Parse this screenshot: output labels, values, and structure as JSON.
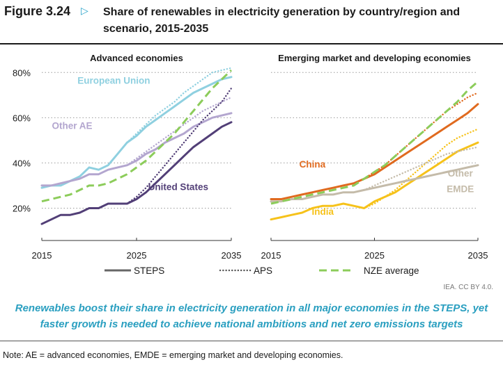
{
  "figure": {
    "label": "Figure 3.24",
    "title": "Share of renewables in electricity generation by country/region and scenario, 2015-2035",
    "credit": "IEA. CC BY 4.0.",
    "caption": "Renewables boost their share in electricity generation in all major economies in the STEPS, yet faster growth is needed to achieve national ambitions and net zero emissions targets",
    "note": "Note: AE = advanced economies, EMDE = emerging market and developing economies."
  },
  "colors": {
    "eu": "#8fd0e0",
    "other_ae": "#b3a6cf",
    "us": "#523f77",
    "china": "#e06a1f",
    "india": "#f6c21a",
    "other_emde": "#c4bba9",
    "nze": "#8ccc5a",
    "legend_line": "#666666",
    "grid": "#9a9a9a",
    "title_accent": "#29a3c9",
    "caption": "#2a9fc0"
  },
  "legend": [
    {
      "label": "STEPS",
      "style": "solid"
    },
    {
      "label": "APS",
      "style": "dotted"
    },
    {
      "label": "NZE average",
      "style": "dashed"
    }
  ],
  "chart_data": [
    {
      "type": "line",
      "title": "Advanced economies",
      "x_ticks": [
        2015,
        2025,
        2035
      ],
      "y_ticks": [
        "20%",
        "40%",
        "60%",
        "80%"
      ],
      "xlim": [
        2015,
        2035
      ],
      "ylim": [
        10,
        85
      ],
      "y_unit": "%",
      "grid": "horizontal dotted",
      "series": [
        {
          "name": "European Union",
          "scenario": "STEPS",
          "color_key": "eu",
          "x": [
            2015,
            2016,
            2017,
            2018,
            2019,
            2020,
            2021,
            2022,
            2023,
            2024,
            2025,
            2026,
            2027,
            2028,
            2029,
            2030,
            2031,
            2032,
            2033,
            2034,
            2035
          ],
          "y": [
            29,
            30,
            30,
            32,
            34,
            38,
            37,
            39,
            44,
            49,
            52,
            56,
            59,
            62,
            65,
            68,
            71,
            73,
            75,
            77,
            78
          ]
        },
        {
          "name": "",
          "scenario": "APS",
          "color_key": "eu",
          "x": [
            2024,
            2025,
            2026,
            2027,
            2028,
            2029,
            2030,
            2031,
            2032,
            2033,
            2034,
            2035
          ],
          "y": [
            49,
            53,
            57,
            61,
            64,
            67,
            71,
            74,
            77,
            80,
            81,
            82
          ]
        },
        {
          "name": "Other AE",
          "scenario": "STEPS",
          "color_key": "other_ae",
          "x": [
            2015,
            2016,
            2017,
            2018,
            2019,
            2020,
            2021,
            2022,
            2023,
            2024,
            2025,
            2026,
            2027,
            2028,
            2029,
            2030,
            2031,
            2032,
            2033,
            2034,
            2035
          ],
          "y": [
            30,
            30,
            31,
            32,
            33,
            35,
            35,
            37,
            38,
            39,
            41,
            44,
            46,
            49,
            51,
            53,
            56,
            58,
            60,
            61,
            62
          ]
        },
        {
          "name": "",
          "scenario": "APS",
          "color_key": "other_ae",
          "x": [
            2024,
            2025,
            2026,
            2027,
            2028,
            2029,
            2030,
            2031,
            2032,
            2033,
            2034,
            2035
          ],
          "y": [
            39,
            42,
            45,
            48,
            51,
            54,
            57,
            60,
            63,
            65,
            67,
            69
          ]
        },
        {
          "name": "United States",
          "scenario": "STEPS",
          "color_key": "us",
          "x": [
            2015,
            2016,
            2017,
            2018,
            2019,
            2020,
            2021,
            2022,
            2023,
            2024,
            2025,
            2026,
            2027,
            2028,
            2029,
            2030,
            2031,
            2032,
            2033,
            2034,
            2035
          ],
          "y": [
            13,
            15,
            17,
            17,
            18,
            20,
            20,
            22,
            22,
            22,
            24,
            27,
            31,
            35,
            39,
            43,
            47,
            50,
            53,
            56,
            58
          ]
        },
        {
          "name": "",
          "scenario": "APS",
          "color_key": "us",
          "x": [
            2024,
            2025,
            2026,
            2027,
            2028,
            2029,
            2030,
            2031,
            2032,
            2033,
            2034,
            2035
          ],
          "y": [
            22,
            25,
            29,
            34,
            39,
            44,
            49,
            54,
            59,
            63,
            67,
            73
          ]
        },
        {
          "name": "",
          "scenario": "NZE average",
          "color_key": "nze",
          "x": [
            2015,
            2016,
            2017,
            2018,
            2019,
            2020,
            2021,
            2022,
            2023,
            2024,
            2025,
            2026,
            2027,
            2028,
            2029,
            2030,
            2031,
            2032,
            2033,
            2034,
            2035
          ],
          "y": [
            23,
            24,
            25,
            26,
            28,
            30,
            30,
            31,
            33,
            35,
            38,
            41,
            45,
            49,
            53,
            58,
            63,
            68,
            73,
            77,
            81
          ]
        }
      ],
      "labels": [
        {
          "text": "European Union",
          "color_key": "eu",
          "at": [
            2022.6,
            75
          ]
        },
        {
          "text": "Other AE",
          "color_key": "other_ae",
          "at": [
            2018.2,
            55
          ]
        },
        {
          "text": "United States",
          "color_key": "us",
          "at": [
            2029.4,
            28
          ]
        }
      ]
    },
    {
      "type": "line",
      "title": "Emerging market and developing economies",
      "x_ticks": [
        2015,
        2025,
        2035
      ],
      "y_ticks": [],
      "xlim": [
        2015,
        2035
      ],
      "ylim": [
        10,
        85
      ],
      "y_unit": "%",
      "grid": "horizontal dotted",
      "series": [
        {
          "name": "China",
          "scenario": "STEPS",
          "color_key": "china",
          "x": [
            2015,
            2016,
            2017,
            2018,
            2019,
            2020,
            2021,
            2022,
            2023,
            2024,
            2025,
            2026,
            2027,
            2028,
            2029,
            2030,
            2031,
            2032,
            2033,
            2034,
            2035
          ],
          "y": [
            24,
            24,
            25,
            26,
            27,
            28,
            29,
            30,
            31,
            33,
            35,
            38,
            41,
            44,
            47,
            50,
            53,
            56,
            59,
            62,
            66
          ]
        },
        {
          "name": "",
          "scenario": "APS",
          "color_key": "china",
          "x": [
            2024,
            2025,
            2026,
            2027,
            2028,
            2029,
            2030,
            2031,
            2032,
            2033,
            2034,
            2035
          ],
          "y": [
            33,
            36,
            39,
            43,
            47,
            51,
            55,
            59,
            63,
            66,
            69,
            71
          ]
        },
        {
          "name": "India",
          "scenario": "STEPS",
          "color_key": "india",
          "x": [
            2015,
            2016,
            2017,
            2018,
            2019,
            2020,
            2021,
            2022,
            2023,
            2024,
            2025,
            2026,
            2027,
            2028,
            2029,
            2030,
            2031,
            2032,
            2033,
            2034,
            2035
          ],
          "y": [
            15,
            16,
            17,
            18,
            20,
            21,
            21,
            22,
            21,
            20,
            23,
            25,
            27,
            30,
            33,
            36,
            39,
            42,
            45,
            47,
            49
          ]
        },
        {
          "name": "",
          "scenario": "APS",
          "color_key": "india",
          "x": [
            2024,
            2025,
            2026,
            2027,
            2028,
            2029,
            2030,
            2031,
            2032,
            2033,
            2034,
            2035
          ],
          "y": [
            20,
            22,
            25,
            28,
            32,
            36,
            40,
            44,
            48,
            51,
            53,
            55
          ]
        },
        {
          "name": "Other EMDE",
          "scenario": "STEPS",
          "color_key": "other_emde",
          "x": [
            2015,
            2016,
            2017,
            2018,
            2019,
            2020,
            2021,
            2022,
            2023,
            2024,
            2025,
            2026,
            2027,
            2028,
            2029,
            2030,
            2031,
            2032,
            2033,
            2034,
            2035
          ],
          "y": [
            23,
            23,
            24,
            24,
            25,
            26,
            26,
            27,
            27,
            28,
            29,
            30,
            31,
            32,
            33,
            34,
            35,
            36,
            37,
            38,
            39
          ]
        },
        {
          "name": "",
          "scenario": "APS",
          "color_key": "other_emde",
          "x": [
            2024,
            2025,
            2026,
            2027,
            2028,
            2029,
            2030,
            2031,
            2032,
            2033,
            2034,
            2035
          ],
          "y": [
            28,
            30,
            32,
            34,
            36,
            38,
            40,
            42,
            44,
            45,
            46,
            47
          ]
        },
        {
          "name": "",
          "scenario": "NZE average",
          "color_key": "nze",
          "x": [
            2015,
            2016,
            2017,
            2018,
            2019,
            2020,
            2021,
            2022,
            2023,
            2024,
            2025,
            2026,
            2027,
            2028,
            2029,
            2030,
            2031,
            2032,
            2033,
            2034,
            2035
          ],
          "y": [
            22,
            23,
            24,
            25,
            26,
            27,
            28,
            29,
            30,
            33,
            36,
            39,
            43,
            47,
            51,
            55,
            59,
            63,
            67,
            72,
            76
          ]
        }
      ],
      "labels": [
        {
          "text": "China",
          "color_key": "china",
          "at": [
            2019.0,
            38
          ]
        },
        {
          "text": "India",
          "color_key": "india",
          "at": [
            2020.0,
            17
          ]
        },
        {
          "text": "Other",
          "color_key": "other_emde",
          "at": [
            2033.3,
            34
          ]
        },
        {
          "text": "EMDE",
          "color_key": "other_emde",
          "at": [
            2033.3,
            27
          ]
        }
      ]
    }
  ]
}
